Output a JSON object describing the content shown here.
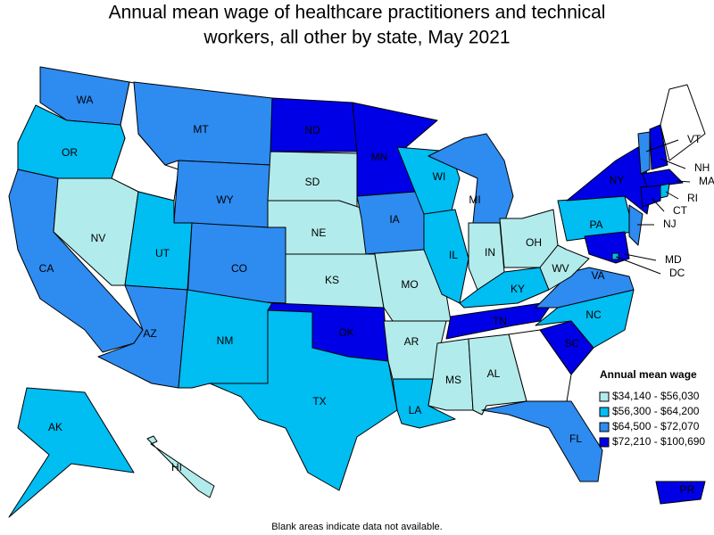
{
  "title": [
    "Annual mean wage of healthcare practitioners and technical",
    "workers, all other by state, May 2021"
  ],
  "legend": {
    "title": "Annual mean wage",
    "items": [
      {
        "label": "$34,140 - $56,030",
        "color": "#b2ebeb"
      },
      {
        "label": "$56,300 - $64,200",
        "color": "#00bdf2"
      },
      {
        "label": "$64,500 - $72,070",
        "color": "#2e8bf0"
      },
      {
        "label": "$72,210 - $100,690",
        "color": "#0000e6"
      }
    ]
  },
  "states": [
    {
      "abbr": "WA",
      "class": 2
    },
    {
      "abbr": "OR",
      "class": 1
    },
    {
      "abbr": "CA",
      "class": 2
    },
    {
      "abbr": "NV",
      "class": 0
    },
    {
      "abbr": "MT",
      "class": 2
    },
    {
      "abbr": "WY",
      "class": 2
    },
    {
      "abbr": "UT",
      "class": 1
    },
    {
      "abbr": "CO",
      "class": 2
    },
    {
      "abbr": "AZ",
      "class": 2
    },
    {
      "abbr": "NM",
      "class": 1
    },
    {
      "abbr": "ND",
      "class": 3
    },
    {
      "abbr": "SD",
      "class": 0
    },
    {
      "abbr": "NE",
      "class": 0
    },
    {
      "abbr": "KS",
      "class": 0
    },
    {
      "abbr": "OK",
      "class": 3
    },
    {
      "abbr": "TX",
      "class": 1
    },
    {
      "abbr": "MN",
      "class": 3
    },
    {
      "abbr": "IA",
      "class": 2
    },
    {
      "abbr": "MO",
      "class": 0
    },
    {
      "abbr": "AR",
      "class": 0
    },
    {
      "abbr": "LA",
      "class": 1
    },
    {
      "abbr": "WI",
      "class": 1
    },
    {
      "abbr": "IL",
      "class": 1
    },
    {
      "abbr": "MI",
      "class": 2
    },
    {
      "abbr": "IN",
      "class": 0
    },
    {
      "abbr": "OH",
      "class": 0
    },
    {
      "abbr": "KY",
      "class": 1
    },
    {
      "abbr": "TN",
      "class": 3
    },
    {
      "abbr": "MS",
      "class": 0
    },
    {
      "abbr": "AL",
      "class": 0
    },
    {
      "abbr": "FL",
      "class": 2
    },
    {
      "abbr": "SC",
      "class": 3
    },
    {
      "abbr": "NC",
      "class": 1
    },
    {
      "abbr": "VA",
      "class": 2
    },
    {
      "abbr": "WV",
      "class": 0
    },
    {
      "abbr": "PA",
      "class": 1
    },
    {
      "abbr": "NY",
      "class": 3
    },
    {
      "abbr": "VT",
      "class": 2
    },
    {
      "abbr": "NH",
      "class": 3
    },
    {
      "abbr": "MA",
      "class": 3
    },
    {
      "abbr": "RI",
      "class": 1
    },
    {
      "abbr": "CT",
      "class": 3
    },
    {
      "abbr": "NJ",
      "class": 2
    },
    {
      "abbr": "MD",
      "class": 3
    },
    {
      "abbr": "DC",
      "class": 1
    },
    {
      "abbr": "AK",
      "class": 1
    },
    {
      "abbr": "HI",
      "class": 0
    },
    {
      "abbr": "PR",
      "class": 3
    }
  ],
  "footnote": "Blank areas indicate data not available."
}
